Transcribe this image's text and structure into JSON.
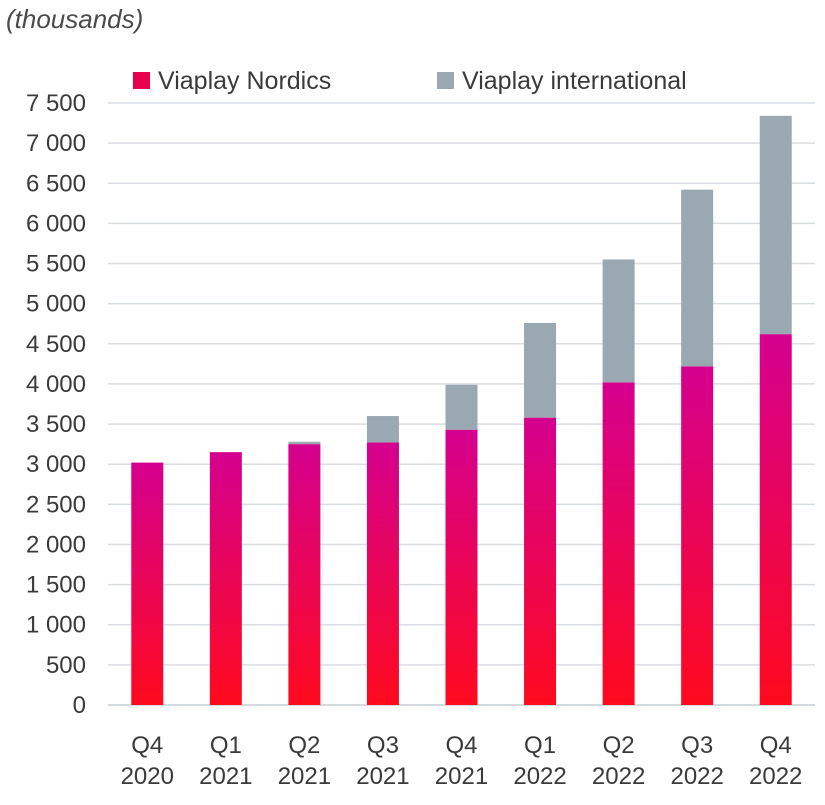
{
  "chart_data": {
    "type": "bar",
    "stacked": true,
    "unit_label": "(thousands)",
    "title": "",
    "xlabel": "",
    "ylabel": "",
    "categories": [
      [
        "Q4",
        "2020"
      ],
      [
        "Q1",
        "2021"
      ],
      [
        "Q2",
        "2021"
      ],
      [
        "Q3",
        "2021"
      ],
      [
        "Q4",
        "2021"
      ],
      [
        "Q1",
        "2022"
      ],
      [
        "Q2",
        "2022"
      ],
      [
        "Q3",
        "2022"
      ],
      [
        "Q4",
        "2022"
      ]
    ],
    "series": [
      {
        "name": "Viaplay Nordics",
        "color_top": "#d4008f",
        "color_bottom": "#ff0a1e",
        "values": [
          3020,
          3150,
          3250,
          3270,
          3430,
          3580,
          4020,
          4220,
          4620
        ]
      },
      {
        "name": "Viaplay international",
        "color": "#9aa8b2",
        "values": [
          0,
          0,
          30,
          330,
          560,
          1180,
          1530,
          2200,
          2720
        ]
      }
    ],
    "ylim": [
      0,
      7500
    ],
    "yticks": [
      {
        "value": 0,
        "label": "0"
      },
      {
        "value": 500,
        "label": "500"
      },
      {
        "value": 1000,
        "label": "1 000"
      },
      {
        "value": 1500,
        "label": "1 500"
      },
      {
        "value": 2000,
        "label": "2 000"
      },
      {
        "value": 2500,
        "label": "2 500"
      },
      {
        "value": 3000,
        "label": "3 000"
      },
      {
        "value": 3500,
        "label": "3 500"
      },
      {
        "value": 4000,
        "label": "4 000"
      },
      {
        "value": 4500,
        "label": "4 500"
      },
      {
        "value": 5000,
        "label": "5 000"
      },
      {
        "value": 5500,
        "label": "5 500"
      },
      {
        "value": 6000,
        "label": "6 000"
      },
      {
        "value": 6500,
        "label": "6 500"
      },
      {
        "value": 7000,
        "label": "7 000"
      },
      {
        "value": 7500,
        "label": "7 500"
      }
    ],
    "grid": true,
    "legend_position": "top"
  }
}
